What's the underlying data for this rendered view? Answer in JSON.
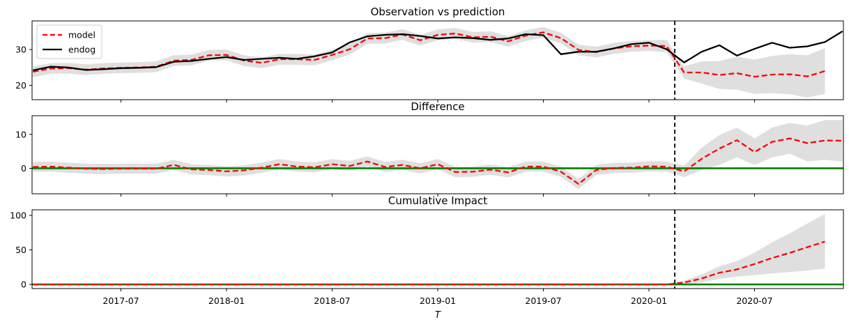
{
  "chart_data": [
    {
      "type": "line",
      "title": "Observation vs prediction",
      "xlabel": "",
      "ylabel": "",
      "ylim": [
        16,
        38
      ],
      "yticks": [
        20,
        30
      ],
      "grid": false,
      "legend": {
        "placement": "top-left",
        "entries": [
          "model",
          "endog"
        ]
      },
      "intervention_date": "2020-02-15",
      "x": [
        "2017-02",
        "2017-03",
        "2017-04",
        "2017-05",
        "2017-06",
        "2017-07",
        "2017-08",
        "2017-09",
        "2017-10",
        "2017-11",
        "2017-12",
        "2018-01",
        "2018-02",
        "2018-03",
        "2018-04",
        "2018-05",
        "2018-06",
        "2018-07",
        "2018-08",
        "2018-09",
        "2018-10",
        "2018-11",
        "2018-12",
        "2019-01",
        "2019-02",
        "2019-03",
        "2019-04",
        "2019-05",
        "2019-06",
        "2019-07",
        "2019-08",
        "2019-09",
        "2019-10",
        "2019-11",
        "2019-12",
        "2020-01",
        "2020-02",
        "2020-03",
        "2020-04",
        "2020-05",
        "2020-06",
        "2020-07",
        "2020-08",
        "2020-09",
        "2020-10",
        "2020-11",
        "2020-12"
      ],
      "series": [
        {
          "name": "model",
          "color": "#ff0000",
          "style": "dashed",
          "values": [
            23.8,
            24.7,
            24.8,
            24.4,
            24.7,
            24.9,
            25.0,
            25.2,
            26.9,
            27.1,
            28.4,
            28.5,
            26.9,
            26.3,
            27.3,
            27.3,
            27.1,
            28.5,
            30.1,
            33.1,
            33.2,
            34.2,
            32.6,
            34.1,
            34.5,
            33.4,
            33.6,
            32.3,
            33.9,
            34.8,
            33.2,
            29.9,
            29.3,
            30.3,
            30.9,
            31.1,
            31.0,
            23.6,
            23.6,
            22.9,
            23.4,
            22.4,
            23.0,
            23.1,
            22.5,
            24.0,
            null
          ],
          "band_lower": [
            22.3,
            23.2,
            23.3,
            22.9,
            23.2,
            23.4,
            23.5,
            23.7,
            25.4,
            25.6,
            26.9,
            27.0,
            25.4,
            24.8,
            25.8,
            25.8,
            25.6,
            27.0,
            28.6,
            31.6,
            31.7,
            32.7,
            31.1,
            32.6,
            33.0,
            31.9,
            32.1,
            30.8,
            32.4,
            33.3,
            31.7,
            28.4,
            27.8,
            28.8,
            29.4,
            29.6,
            29.3,
            21.9,
            20.5,
            19.0,
            18.8,
            17.6,
            17.8,
            17.5,
            16.6,
            17.6,
            null
          ],
          "band_upper": [
            25.3,
            26.2,
            26.3,
            25.9,
            26.2,
            26.4,
            26.5,
            26.7,
            28.4,
            28.6,
            29.9,
            30.0,
            28.4,
            27.8,
            28.8,
            28.8,
            28.6,
            30.0,
            31.6,
            34.6,
            34.7,
            35.7,
            34.1,
            35.6,
            36.0,
            34.9,
            35.1,
            33.8,
            35.4,
            36.3,
            34.7,
            31.4,
            30.8,
            31.8,
            32.4,
            32.6,
            32.7,
            25.3,
            26.7,
            26.8,
            28.0,
            27.2,
            28.2,
            28.7,
            28.4,
            30.4,
            null
          ]
        },
        {
          "name": "endog",
          "color": "#000000",
          "style": "solid",
          "values": [
            24.2,
            25.2,
            25.0,
            24.3,
            24.5,
            24.8,
            24.9,
            25.1,
            26.6,
            26.8,
            27.4,
            27.9,
            27.1,
            27.4,
            27.7,
            27.4,
            28.1,
            29.2,
            32.0,
            33.7,
            34.1,
            34.3,
            33.8,
            33.1,
            33.4,
            33.2,
            32.7,
            33.1,
            34.3,
            34.0,
            28.7,
            29.4,
            29.4,
            30.3,
            31.5,
            31.9,
            30.1,
            26.4,
            29.4,
            31.2,
            28.3,
            30.2,
            31.9,
            30.5,
            30.9,
            32.1,
            35.1
          ]
        }
      ]
    },
    {
      "type": "line",
      "title": "Difference",
      "xlabel": "",
      "ylabel": "",
      "ylim": [
        -7.5,
        15.5
      ],
      "yticks": [
        0,
        10
      ],
      "grid": false,
      "zero_line_color": "#008000",
      "intervention_date": "2020-02-15",
      "x": [
        "2017-02",
        "2017-03",
        "2017-04",
        "2017-05",
        "2017-06",
        "2017-07",
        "2017-08",
        "2017-09",
        "2017-10",
        "2017-11",
        "2017-12",
        "2018-01",
        "2018-02",
        "2018-03",
        "2018-04",
        "2018-05",
        "2018-06",
        "2018-07",
        "2018-08",
        "2018-09",
        "2018-10",
        "2018-11",
        "2018-12",
        "2019-01",
        "2019-02",
        "2019-03",
        "2019-04",
        "2019-05",
        "2019-06",
        "2019-07",
        "2019-08",
        "2019-09",
        "2019-10",
        "2019-11",
        "2019-12",
        "2020-01",
        "2020-02",
        "2020-03",
        "2020-04",
        "2020-05",
        "2020-06",
        "2020-07",
        "2020-08",
        "2020-09",
        "2020-10",
        "2020-11",
        "2020-12"
      ],
      "series": [
        {
          "name": "",
          "color": "#ff0000",
          "style": "dashed",
          "values": [
            0.4,
            0.5,
            0.2,
            -0.1,
            -0.2,
            -0.1,
            -0.1,
            -0.1,
            1.0,
            -0.3,
            -0.5,
            -0.9,
            -0.6,
            0.2,
            1.2,
            0.5,
            0.3,
            1.2,
            0.7,
            2.0,
            0.4,
            1.0,
            0.0,
            1.2,
            -1.1,
            -1.0,
            -0.4,
            -1.2,
            0.5,
            0.5,
            -1.0,
            -4.6,
            -0.5,
            0.1,
            0.2,
            0.6,
            0.5,
            -0.9,
            2.8,
            5.8,
            8.3,
            4.8,
            7.8,
            8.8,
            7.4,
            8.2,
            8.1
          ],
          "band_lower": [
            -1.1,
            -1.0,
            -1.3,
            -1.6,
            -1.7,
            -1.6,
            -1.6,
            -1.6,
            -0.5,
            -1.8,
            -2.0,
            -2.4,
            -2.1,
            -1.3,
            -0.3,
            -1.0,
            -1.2,
            -0.3,
            -0.8,
            0.5,
            -1.1,
            -0.5,
            -1.5,
            -0.3,
            -2.6,
            -2.5,
            -1.9,
            -2.7,
            -1.0,
            -1.0,
            -2.5,
            -6.1,
            -2.0,
            -1.4,
            -1.3,
            -0.9,
            -1.0,
            -2.6,
            -0.5,
            1.0,
            3.2,
            1.0,
            3.2,
            4.3,
            2.0,
            2.5,
            2.0
          ],
          "band_upper": [
            1.9,
            2.0,
            1.7,
            1.4,
            1.3,
            1.4,
            1.4,
            1.4,
            2.5,
            1.2,
            1.0,
            0.6,
            0.9,
            1.7,
            2.7,
            2.0,
            1.8,
            2.7,
            2.2,
            3.5,
            1.9,
            2.5,
            1.5,
            2.7,
            0.4,
            0.5,
            1.1,
            0.3,
            2.0,
            2.0,
            0.5,
            -3.1,
            1.0,
            1.6,
            1.7,
            2.1,
            2.0,
            0.8,
            6.1,
            9.8,
            12.0,
            8.8,
            12.0,
            13.4,
            12.6,
            14.2,
            14.2
          ]
        }
      ]
    },
    {
      "type": "line",
      "title": "Cumulative Impact",
      "xlabel": "T",
      "ylabel": "",
      "ylim": [
        -6,
        108
      ],
      "yticks": [
        0,
        50,
        100
      ],
      "grid": false,
      "zero_line_color": "#008000",
      "intervention_date": "2020-02-15",
      "xticks": [
        "2017-07",
        "2018-01",
        "2018-07",
        "2019-01",
        "2019-07",
        "2020-01",
        "2020-07"
      ],
      "x": [
        "2017-02",
        "2017-03",
        "2017-04",
        "2017-05",
        "2017-06",
        "2017-07",
        "2017-08",
        "2017-09",
        "2017-10",
        "2017-11",
        "2017-12",
        "2018-01",
        "2018-02",
        "2018-03",
        "2018-04",
        "2018-05",
        "2018-06",
        "2018-07",
        "2018-08",
        "2018-09",
        "2018-10",
        "2018-11",
        "2018-12",
        "2019-01",
        "2019-02",
        "2019-03",
        "2019-04",
        "2019-05",
        "2019-06",
        "2019-07",
        "2019-08",
        "2019-09",
        "2019-10",
        "2019-11",
        "2019-12",
        "2020-01",
        "2020-02",
        "2020-03",
        "2020-04",
        "2020-05",
        "2020-06",
        "2020-07",
        "2020-08",
        "2020-09",
        "2020-10",
        "2020-11",
        "2020-12"
      ],
      "series": [
        {
          "name": "",
          "color": "#ff0000",
          "style": "dashed",
          "values": [
            0,
            0,
            0,
            0,
            0,
            0,
            0,
            0,
            0,
            0,
            0,
            0,
            0,
            0,
            0,
            0,
            0,
            0,
            0,
            0,
            0,
            0,
            0,
            0,
            0,
            0,
            0,
            0,
            0,
            0,
            0,
            0,
            0,
            0,
            0,
            0,
            0,
            2.8,
            8.6,
            16.9,
            21.7,
            29.5,
            38.3,
            45.7,
            53.9,
            62.0,
            null
          ],
          "band_lower": [
            0,
            0,
            0,
            0,
            0,
            0,
            0,
            0,
            0,
            0,
            0,
            0,
            0,
            0,
            0,
            0,
            0,
            0,
            0,
            0,
            0,
            0,
            0,
            0,
            0,
            0,
            0,
            0,
            0,
            0,
            0,
            0,
            0,
            0,
            0,
            0,
            0,
            0.3,
            3.0,
            8.0,
            11.5,
            13.5,
            16.0,
            18.0,
            20.0,
            23.0,
            null
          ],
          "band_upper": [
            0,
            0,
            0,
            0,
            0,
            0,
            0,
            0,
            0,
            0,
            0,
            0,
            0,
            0,
            0,
            0,
            0,
            0,
            0,
            0,
            0,
            0,
            0,
            0,
            0,
            0,
            0,
            0,
            0,
            0,
            0,
            0,
            0,
            0,
            0,
            0,
            0,
            5.5,
            14.5,
            26.0,
            34.0,
            46.0,
            61.0,
            74.0,
            88.0,
            102.0,
            null
          ]
        }
      ]
    }
  ]
}
